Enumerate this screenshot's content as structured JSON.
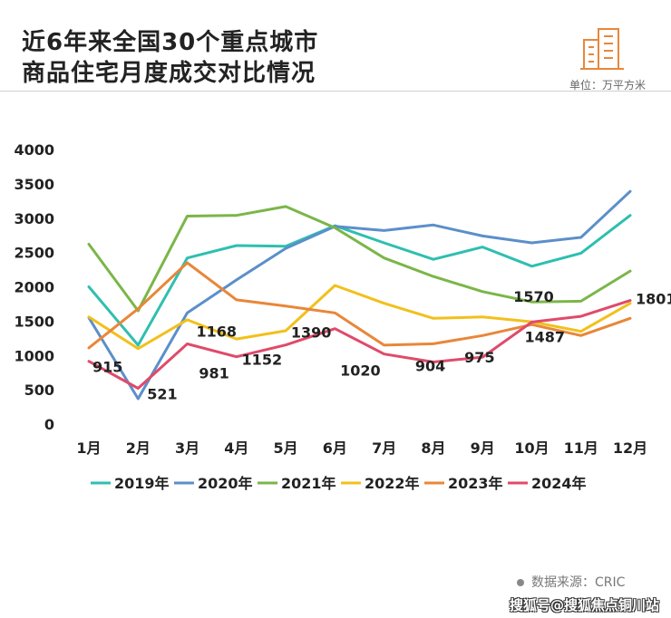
{
  "header": {
    "title_line1": "近6年来全国30个重点城市",
    "title_line2": "商品住宅月度成交对比情况",
    "unit": "单位：万平方米"
  },
  "footer": {
    "source": "数据来源：CRIC",
    "watermark": "搜狐号@搜狐焦点铜川站"
  },
  "chart_data": {
    "type": "line",
    "categories": [
      "1月",
      "2月",
      "3月",
      "4月",
      "5月",
      "6月",
      "7月",
      "8月",
      "9月",
      "10月",
      "11月",
      "12月"
    ],
    "ylim": [
      0,
      4000
    ],
    "yticks": [
      0,
      500,
      1000,
      1500,
      2000,
      2500,
      3000,
      3500,
      4000
    ],
    "grid": false,
    "legend_position": "bottom",
    "series": [
      {
        "name": "2019年",
        "color": "#2ebfb0",
        "values": [
          2000,
          1150,
          2420,
          2600,
          2590,
          2890,
          2640,
          2400,
          2580,
          2300,
          2490,
          3040
        ]
      },
      {
        "name": "2020年",
        "color": "#5b8fc9",
        "values": [
          1550,
          370,
          1620,
          2100,
          2560,
          2880,
          2820,
          2900,
          2740,
          2640,
          2720,
          3390
        ]
      },
      {
        "name": "2021年",
        "color": "#7ab648",
        "values": [
          2620,
          1650,
          3030,
          3040,
          3170,
          2860,
          2420,
          2150,
          1930,
          1780,
          1790,
          2230
        ]
      },
      {
        "name": "2022年",
        "color": "#f2c01b",
        "values": [
          1560,
          1100,
          1520,
          1240,
          1360,
          2020,
          1760,
          1540,
          1560,
          1490,
          1350,
          1760
        ]
      },
      {
        "name": "2023年",
        "color": "#e8873a",
        "values": [
          1110,
          1680,
          2350,
          1810,
          1720,
          1620,
          1150,
          1170,
          1290,
          1450,
          1290,
          1540
        ]
      },
      {
        "name": "2024年",
        "color": "#e04a6a",
        "values": [
          915,
          521,
          1168,
          981,
          1152,
          1390,
          1020,
          904,
          975,
          1487,
          1570,
          1801
        ]
      }
    ],
    "data_labels": [
      "915",
      "521",
      "1168",
      "981",
      "1152",
      "1390",
      "1020",
      "904",
      "975",
      "1487",
      "1570",
      "1801"
    ]
  }
}
